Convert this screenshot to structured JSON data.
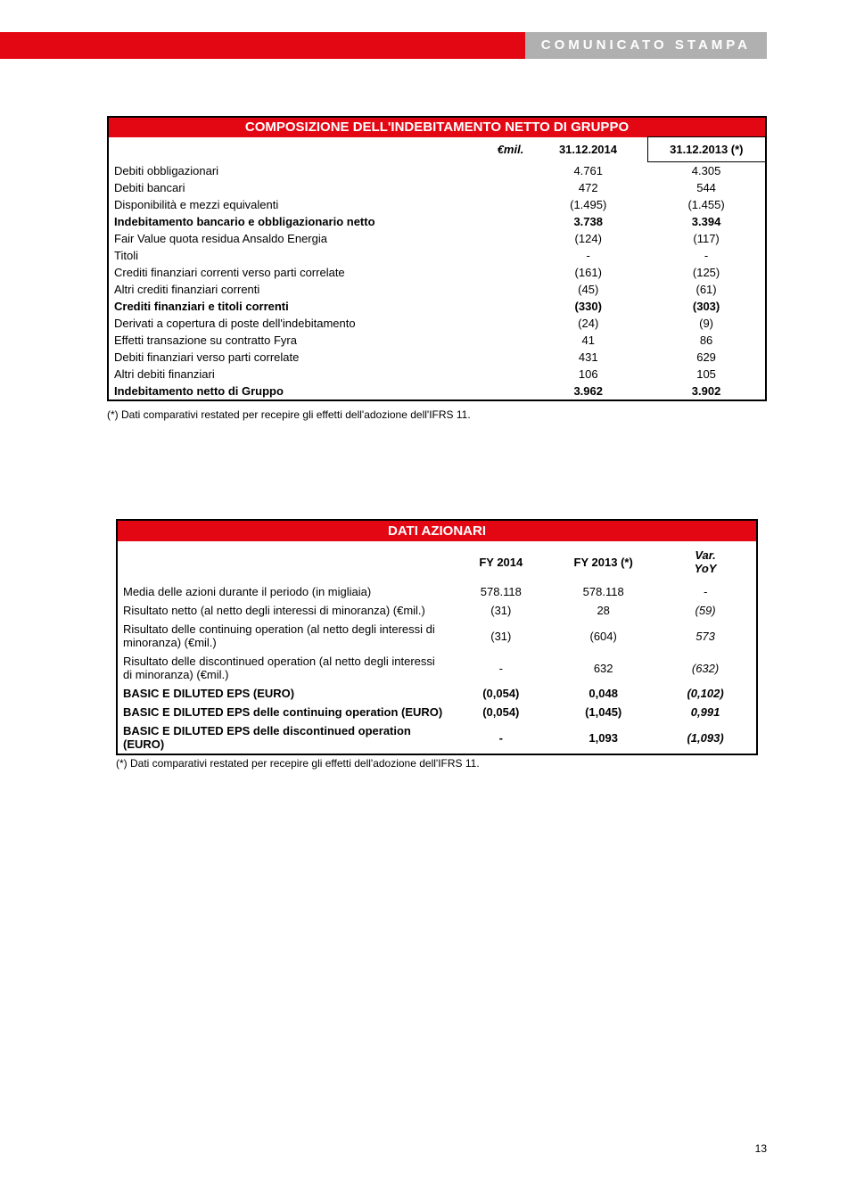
{
  "header": {
    "banner_text": "COMUNICATO STAMPA",
    "banner_bg": "#b0b0b0",
    "banner_color": "#ffffff",
    "accent_bg": "#e30613"
  },
  "table1": {
    "title": "COMPOSIZIONE DELL'INDEBITAMENTO NETTO DI GRUPPO",
    "unit_label": "€mil.",
    "col1_header": "31.12.2014",
    "col2_header": "31.12.2013 (*)",
    "rows": [
      {
        "label": "Debiti obbligazionari",
        "v1": "4.761",
        "v2": "4.305",
        "bold": false
      },
      {
        "label": "Debiti bancari",
        "v1": "472",
        "v2": "544",
        "bold": false
      },
      {
        "label": "Disponibilità e mezzi equivalenti",
        "v1": "(1.495)",
        "v2": "(1.455)",
        "bold": false
      },
      {
        "label": "Indebitamento bancario e obbligazionario netto",
        "v1": "3.738",
        "v2": "3.394",
        "bold": true
      },
      {
        "label": "Fair Value quota residua Ansaldo Energia",
        "v1": "(124)",
        "v2": "(117)",
        "bold": false
      },
      {
        "label": "Titoli",
        "v1": "-",
        "v2": "-",
        "bold": false
      },
      {
        "label": "Crediti finanziari correnti verso parti correlate",
        "v1": "(161)",
        "v2": "(125)",
        "bold": false
      },
      {
        "label": "Altri crediti finanziari correnti",
        "v1": "(45)",
        "v2": "(61)",
        "bold": false
      },
      {
        "label": "Crediti finanziari e titoli correnti",
        "v1": "(330)",
        "v2": "(303)",
        "bold": true
      },
      {
        "label": "Derivati a copertura di poste dell'indebitamento",
        "v1": "(24)",
        "v2": "(9)",
        "bold": false
      },
      {
        "label": "Effetti transazione su contratto Fyra",
        "v1": "41",
        "v2": "86",
        "bold": false
      },
      {
        "label": "Debiti finanziari verso parti correlate",
        "v1": "431",
        "v2": "629",
        "bold": false
      },
      {
        "label": "Altri debiti finanziari",
        "v1": "106",
        "v2": "105",
        "bold": false
      },
      {
        "label": "Indebitamento netto di Gruppo",
        "v1": "3.962",
        "v2": "3.902",
        "bold": true
      }
    ],
    "footnote": "(*) Dati comparativi restated per recepire gli effetti dell'adozione dell'IFRS 11."
  },
  "table2": {
    "title": "DATI AZIONARI",
    "col1_header": "FY 2014",
    "col2_header": "FY 2013 (*)",
    "col3_header_line1": "Var.",
    "col3_header_line2": "YoY",
    "rows": [
      {
        "label": "Media delle azioni durante il periodo (in migliaia)",
        "v1": "578.118",
        "v2": "578.118",
        "v3": "-",
        "bold": false
      },
      {
        "label": "Risultato netto (al netto degli interessi di minoranza) (€mil.)",
        "v1": "(31)",
        "v2": "28",
        "v3": "(59)",
        "bold": false
      },
      {
        "label": "Risultato delle continuing operation (al netto degli interessi di minoranza) (€mil.)",
        "v1": "(31)",
        "v2": "(604)",
        "v3": "573",
        "bold": false
      },
      {
        "label": "Risultato delle discontinued operation (al netto degli interessi di minoranza) (€mil.)",
        "v1": "-",
        "v2": "632",
        "v3": "(632)",
        "bold": false
      },
      {
        "label": "BASIC E DILUTED EPS (EURO)",
        "v1": "(0,054)",
        "v2": "0,048",
        "v3": "(0,102)",
        "bold": true
      },
      {
        "label": "BASIC E DILUTED EPS  delle continuing operation (EURO)",
        "v1": "(0,054)",
        "v2": "(1,045)",
        "v3": "0,991",
        "bold": true
      },
      {
        "label": "BASIC E DILUTED EPS  delle discontinued operation (EURO)",
        "v1": "-",
        "v2": "1,093",
        "v3": "(1,093)",
        "bold": true
      }
    ],
    "footnote": "(*) Dati comparativi restated per recepire gli effetti dell'adozione dell'IFRS 11."
  },
  "page_number": "13"
}
